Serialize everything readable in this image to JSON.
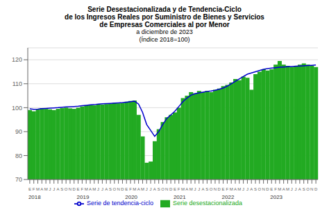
{
  "chart_data": {
    "type": "bar",
    "title": [
      "Serie Desestacionalizada y de Tendencia-Ciclo",
      "de los Ingresos Reales por Suministro de Bienes y Servicios",
      "de Empresas Comerciales al por Menor"
    ],
    "subtitle": [
      "a diciembre de 2023",
      "(Índice 2018=100)"
    ],
    "categories": [
      "E",
      "F",
      "M",
      "A",
      "M",
      "J",
      "J",
      "A",
      "S",
      "O",
      "N",
      "D",
      "E",
      "F",
      "M",
      "A",
      "M",
      "J",
      "J",
      "A",
      "S",
      "O",
      "N",
      "D",
      "E",
      "F",
      "M",
      "A",
      "M",
      "J",
      "J",
      "A",
      "S",
      "O",
      "N",
      "D",
      "E",
      "F",
      "M",
      "A",
      "M",
      "J",
      "J",
      "A",
      "S",
      "O",
      "N",
      "D",
      "E",
      "F",
      "M",
      "A",
      "M",
      "J",
      "J",
      "A",
      "S",
      "O",
      "N",
      "D",
      "E",
      "F",
      "M",
      "A",
      "M",
      "J",
      "J",
      "A",
      "S",
      "O",
      "N",
      "D"
    ],
    "annotations": [
      {
        "text": "2018",
        "x": 0
      },
      {
        "text": "2019",
        "x": 12
      },
      {
        "text": "2020",
        "x": 24
      },
      {
        "text": "2021",
        "x": 36
      },
      {
        "text": "2022",
        "x": 48
      },
      {
        "text": "2023",
        "x": 60
      }
    ],
    "series": [
      {
        "name": "Serie desestacionalizada",
        "type": "bar",
        "color": "#22aa22",
        "values": [
          99.0,
          98.5,
          99.2,
          99.8,
          99.5,
          99.3,
          99.0,
          99.5,
          99.8,
          100.0,
          99.7,
          99.5,
          100.0,
          100.5,
          101.0,
          101.2,
          101.0,
          101.5,
          101.3,
          101.5,
          101.7,
          102.0,
          101.8,
          102.0,
          102.5,
          102.8,
          103.0,
          97.0,
          88.0,
          77.0,
          77.5,
          86.0,
          91.0,
          94.0,
          96.0,
          97.0,
          98.0,
          100.0,
          104.0,
          105.0,
          106.5,
          106.0,
          107.0,
          106.5,
          107.0,
          106.5,
          107.5,
          108.0,
          109.0,
          109.5,
          110.5,
          112.0,
          111.5,
          113.0,
          112.5,
          107.5,
          114.0,
          115.0,
          116.0,
          115.5,
          116.0,
          118.0,
          119.5,
          118.0,
          117.5,
          117.0,
          117.5,
          118.0,
          118.5,
          118.0,
          117.5,
          117.0
        ]
      },
      {
        "name": "Serie de tendencia-ciclo",
        "type": "line",
        "color": "#0000cc",
        "values": [
          99.5,
          99.3,
          99.4,
          99.6,
          99.7,
          99.8,
          99.9,
          100.0,
          100.2,
          100.3,
          100.4,
          100.5,
          100.6,
          100.8,
          101.0,
          101.2,
          101.3,
          101.5,
          101.6,
          101.7,
          101.8,
          101.9,
          102.0,
          102.1,
          102.3,
          102.5,
          102.7,
          101.5,
          98.0,
          93.0,
          90.5,
          88.0,
          90.0,
          93.0,
          95.5,
          97.0,
          98.5,
          100.5,
          102.5,
          104.0,
          105.2,
          105.8,
          106.2,
          106.5,
          106.8,
          107.0,
          107.3,
          107.7,
          108.2,
          109.0,
          110.0,
          111.0,
          112.0,
          113.0,
          114.0,
          114.5,
          115.0,
          115.5,
          116.0,
          116.3,
          116.5,
          116.7,
          116.9,
          117.0,
          117.1,
          117.2,
          117.3,
          117.4,
          117.5,
          117.6,
          117.7,
          117.8
        ]
      }
    ],
    "ylim": [
      70,
      125
    ],
    "yticks": [
      70,
      80,
      90,
      100,
      110,
      120
    ],
    "grid": true,
    "legend": "bottom"
  }
}
